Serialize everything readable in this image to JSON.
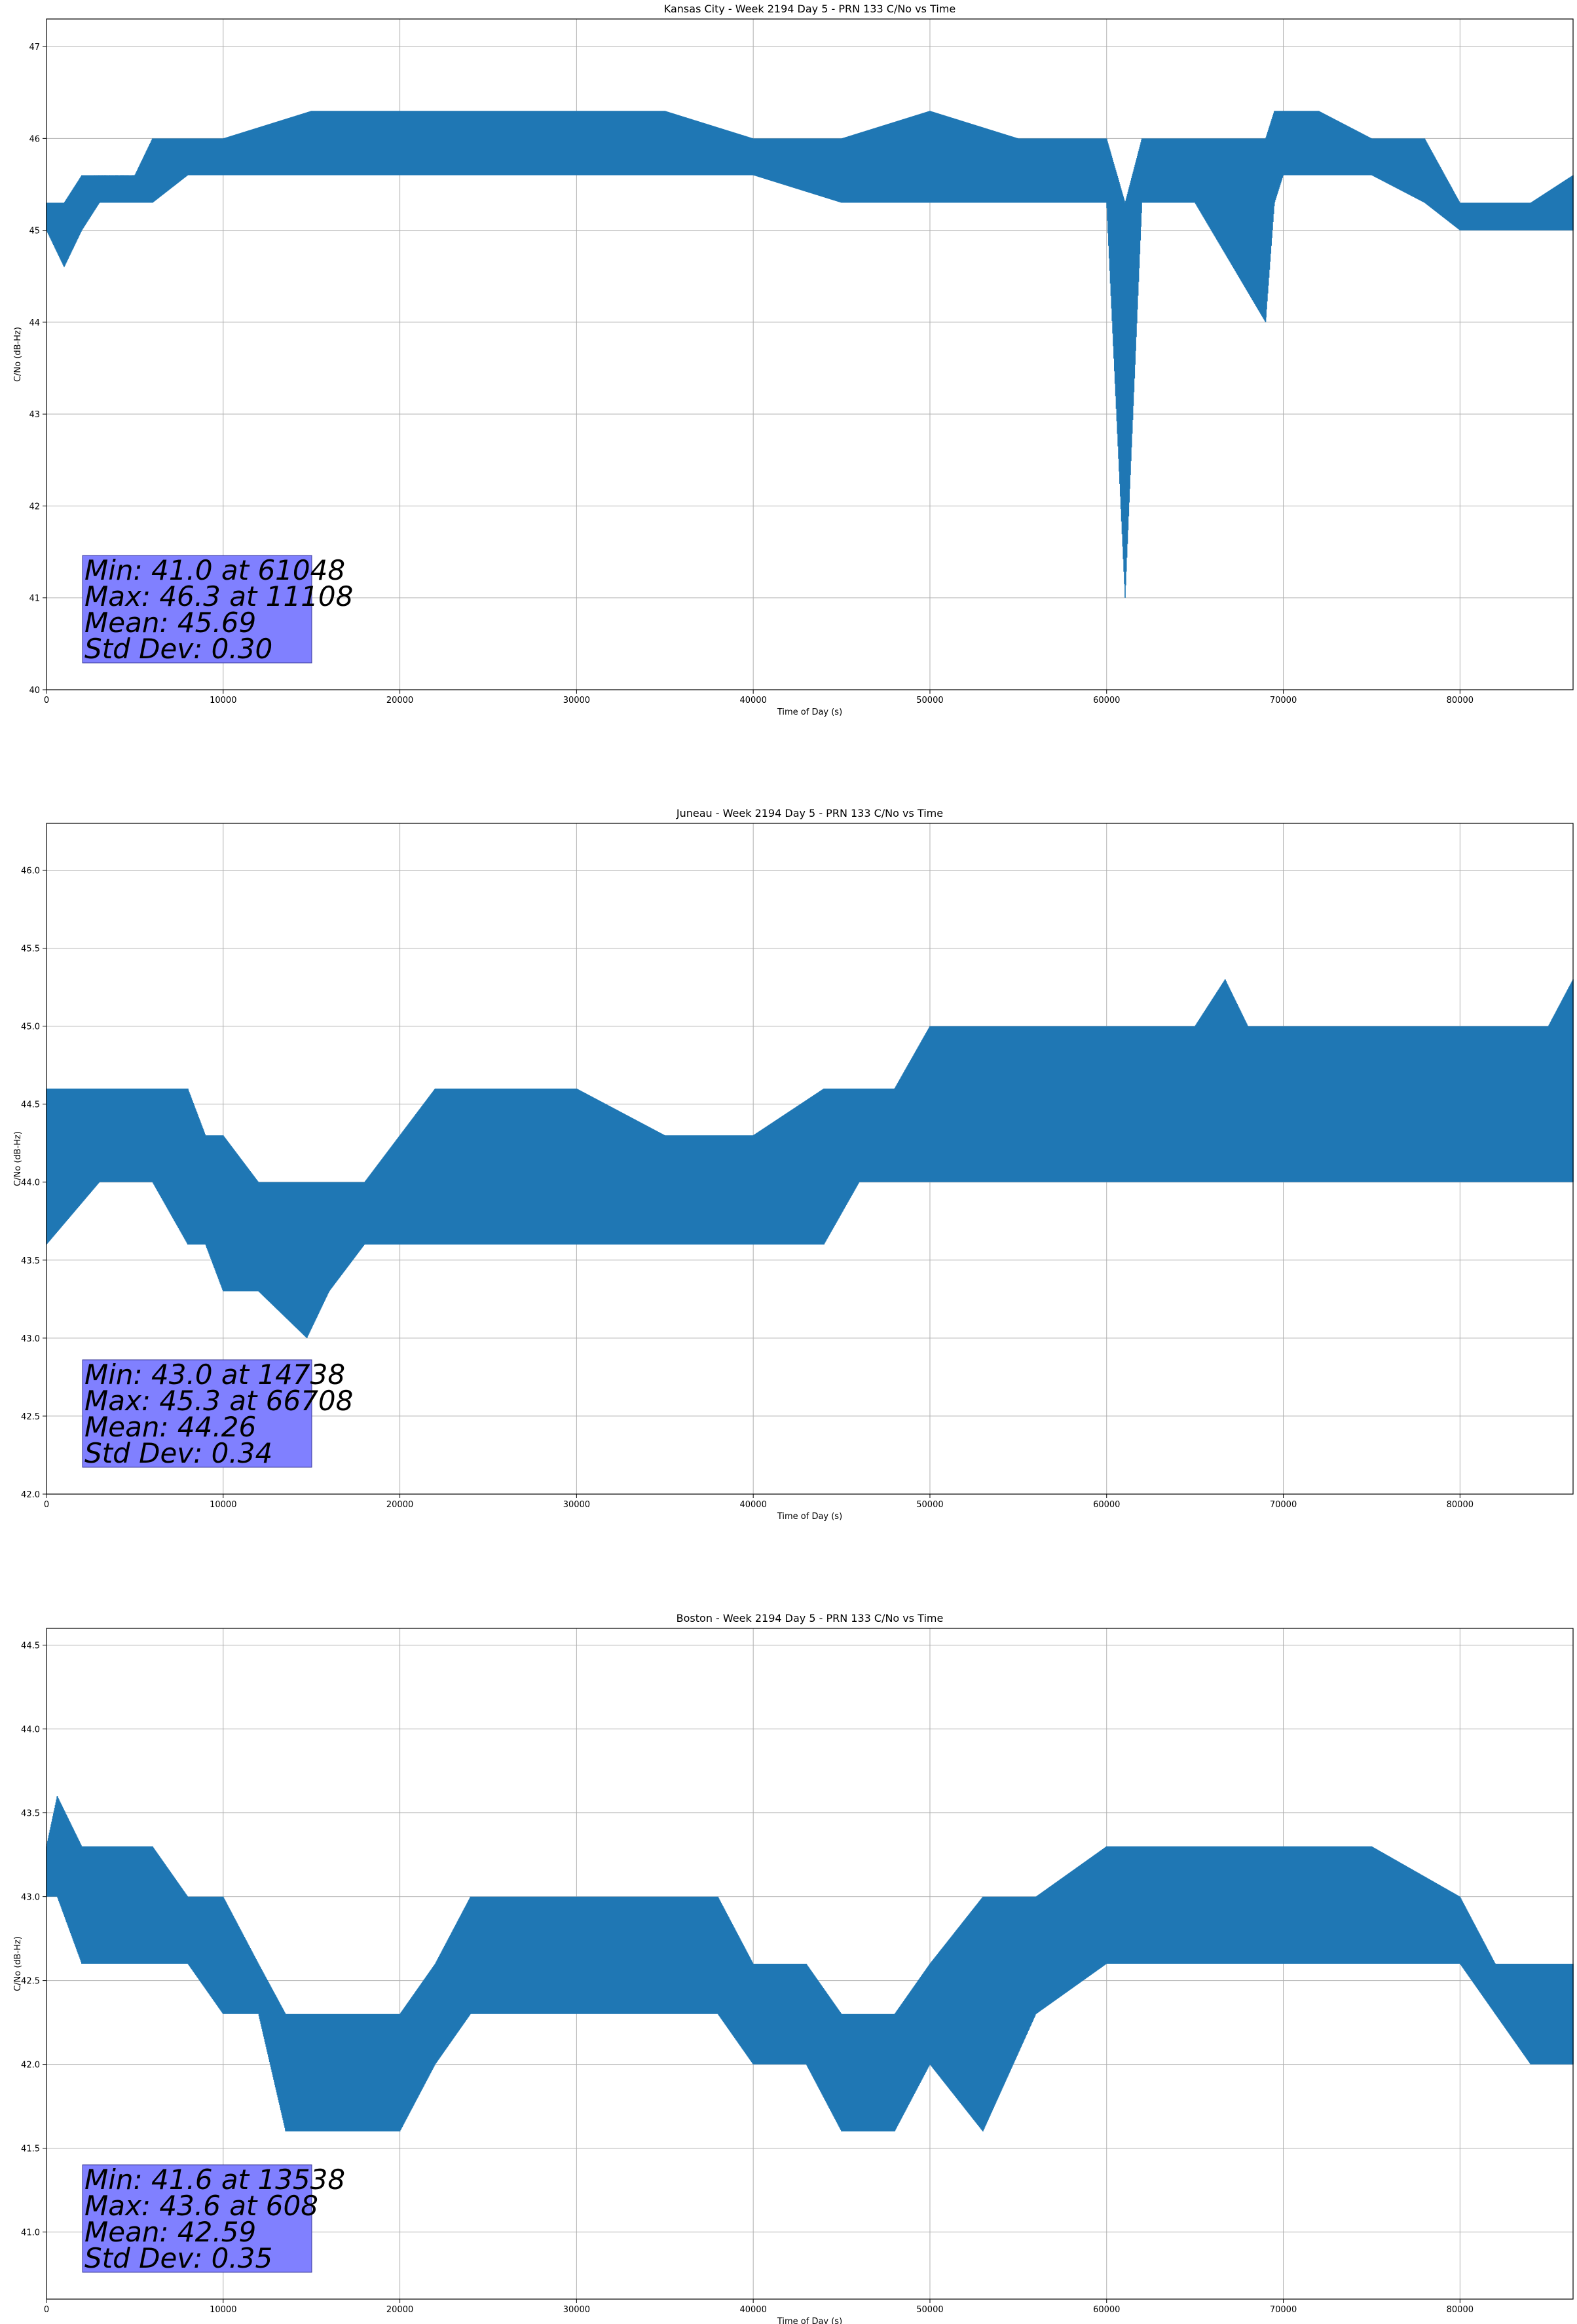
{
  "chart_data": [
    {
      "type": "line",
      "title": "Kansas City - Week 2194 Day 5 - PRN 133 C/No vs Time",
      "xlabel": "Time of Day (s)",
      "ylabel": "C/No (dB-Hz)",
      "xlim": [
        0,
        86400
      ],
      "ylim": [
        40,
        47.3
      ],
      "xticks": [
        0,
        10000,
        20000,
        30000,
        40000,
        50000,
        60000,
        70000,
        80000
      ],
      "yticks": [
        40,
        41,
        42,
        43,
        44,
        45,
        46,
        47
      ],
      "ytick_decimals": 0,
      "grid": true,
      "color": "#1f77b4",
      "series": [
        {
          "x": [
            0,
            1000,
            2000,
            3000,
            5000,
            6000,
            8000,
            10000,
            15000,
            20000,
            25000,
            30000,
            35000,
            40000,
            45000,
            50000,
            55000,
            60000,
            61048,
            62000,
            65000,
            69000,
            69500,
            70000,
            72000,
            75000,
            78000,
            80000,
            82000,
            84000,
            86400
          ],
          "low": [
            45.0,
            44.6,
            45.0,
            45.3,
            45.3,
            45.3,
            45.6,
            45.6,
            45.6,
            45.6,
            45.6,
            45.6,
            45.6,
            45.6,
            45.3,
            45.3,
            45.3,
            45.3,
            41.0,
            45.3,
            45.3,
            44.0,
            45.3,
            45.6,
            45.6,
            45.6,
            45.3,
            45.0,
            45.0,
            45.0,
            45.0
          ],
          "high": [
            45.3,
            45.3,
            45.6,
            45.6,
            45.6,
            46.0,
            46.0,
            46.0,
            46.3,
            46.3,
            46.3,
            46.3,
            46.3,
            46.0,
            46.0,
            46.3,
            46.0,
            46.0,
            45.3,
            46.0,
            46.0,
            46.0,
            46.3,
            46.3,
            46.3,
            46.0,
            46.0,
            45.3,
            45.3,
            45.3,
            45.6
          ]
        }
      ],
      "stats": [
        "Min: 41.0 at 61048",
        "Max: 46.3 at 11108",
        "Mean: 45.69",
        "Std Dev: 0.30"
      ],
      "stats_box_color": "#8080ff"
    },
    {
      "type": "line",
      "title": "Juneau - Week 2194 Day 5 - PRN 133 C/No vs Time",
      "xlabel": "Time of Day (s)",
      "ylabel": "C/No (dB-Hz)",
      "xlim": [
        0,
        86400
      ],
      "ylim": [
        42.0,
        46.3
      ],
      "xticks": [
        0,
        10000,
        20000,
        30000,
        40000,
        50000,
        60000,
        70000,
        80000
      ],
      "yticks": [
        42.0,
        42.5,
        43.0,
        43.5,
        44.0,
        44.5,
        45.0,
        45.5,
        46.0
      ],
      "ytick_decimals": 1,
      "grid": true,
      "color": "#1f77b4",
      "series": [
        {
          "x": [
            0,
            3000,
            6000,
            8000,
            9000,
            10000,
            12000,
            14738,
            16000,
            18000,
            20000,
            22000,
            25000,
            30000,
            35000,
            40000,
            44000,
            46000,
            48000,
            50000,
            55000,
            60000,
            65000,
            66708,
            68000,
            70000,
            75000,
            80000,
            85000,
            86400
          ],
          "low": [
            43.6,
            44.0,
            44.0,
            43.6,
            43.6,
            43.3,
            43.3,
            43.0,
            43.3,
            43.6,
            43.6,
            43.6,
            43.6,
            43.6,
            43.6,
            43.6,
            43.6,
            44.0,
            44.0,
            44.0,
            44.0,
            44.0,
            44.0,
            44.0,
            44.0,
            44.0,
            44.0,
            44.0,
            44.0,
            44.0
          ],
          "high": [
            44.6,
            44.6,
            44.6,
            44.6,
            44.3,
            44.3,
            44.0,
            44.0,
            44.0,
            44.0,
            44.3,
            44.6,
            44.6,
            44.6,
            44.3,
            44.3,
            44.6,
            44.6,
            44.6,
            45.0,
            45.0,
            45.0,
            45.0,
            45.3,
            45.0,
            45.0,
            45.0,
            45.0,
            45.0,
            45.3
          ]
        }
      ],
      "stats": [
        "Min: 43.0 at 14738",
        "Max: 45.3 at 66708",
        "Mean: 44.26",
        "Std Dev: 0.34"
      ],
      "stats_box_color": "#8080ff"
    },
    {
      "type": "line",
      "title": "Boston - Week 2194 Day 5 - PRN 133 C/No vs Time",
      "xlabel": "Time of Day (s)",
      "ylabel": "C/No (dB-Hz)",
      "xlim": [
        0,
        86400
      ],
      "ylim": [
        40.6,
        44.6
      ],
      "xticks": [
        0,
        10000,
        20000,
        30000,
        40000,
        50000,
        60000,
        70000,
        80000
      ],
      "yticks": [
        41.0,
        41.5,
        42.0,
        42.5,
        43.0,
        43.5,
        44.0,
        44.5
      ],
      "ytick_decimals": 1,
      "grid": true,
      "color": "#1f77b4",
      "series": [
        {
          "x": [
            0,
            608,
            2000,
            4000,
            6000,
            8000,
            10000,
            12000,
            13538,
            15000,
            18000,
            20000,
            22000,
            24000,
            26000,
            30000,
            35000,
            38000,
            40000,
            43000,
            45000,
            48000,
            50000,
            53000,
            56000,
            60000,
            65000,
            70000,
            75000,
            80000,
            82000,
            84000,
            86400
          ],
          "low": [
            43.0,
            43.0,
            42.6,
            42.6,
            42.6,
            42.6,
            42.3,
            42.3,
            41.6,
            41.6,
            41.6,
            41.6,
            42.0,
            42.3,
            42.3,
            42.3,
            42.3,
            42.3,
            42.0,
            42.0,
            41.6,
            41.6,
            42.0,
            41.6,
            42.3,
            42.6,
            42.6,
            42.6,
            42.6,
            42.6,
            42.3,
            42.0,
            42.0
          ],
          "high": [
            43.3,
            43.6,
            43.3,
            43.3,
            43.3,
            43.0,
            43.0,
            42.6,
            42.3,
            42.3,
            42.3,
            42.3,
            42.6,
            43.0,
            43.0,
            43.0,
            43.0,
            43.0,
            42.6,
            42.6,
            42.3,
            42.3,
            42.6,
            43.0,
            43.0,
            43.3,
            43.3,
            43.3,
            43.3,
            43.0,
            42.6,
            42.6,
            42.6
          ]
        }
      ],
      "stats": [
        "Min: 41.6 at 13538",
        "Max: 43.6 at 608",
        "Mean: 42.59",
        "Std Dev: 0.35"
      ],
      "stats_box_color": "#8080ff"
    }
  ]
}
